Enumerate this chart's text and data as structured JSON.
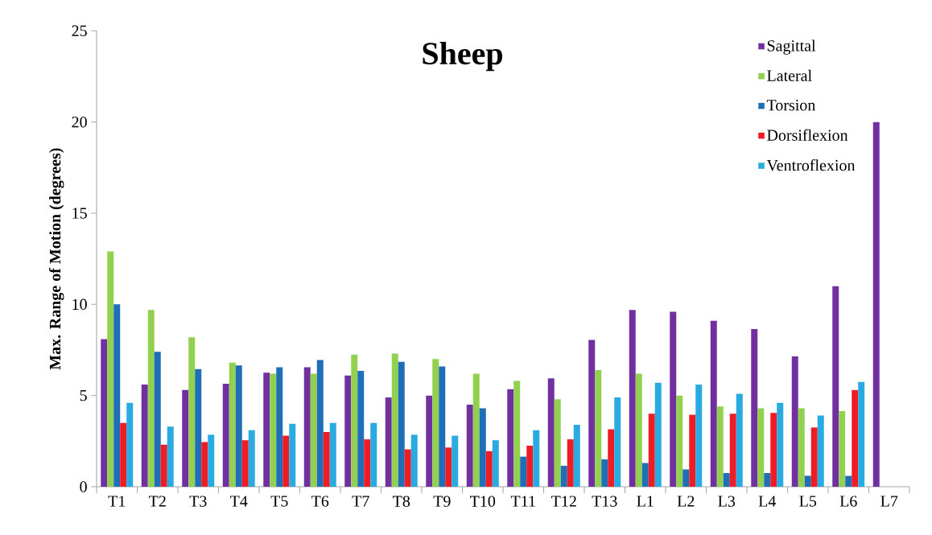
{
  "chart_data": {
    "type": "bar",
    "title": "Sheep",
    "ylabel": "Max. Range of Motion (degrees)",
    "categories": [
      "T1",
      "T2",
      "T3",
      "T4",
      "T5",
      "T6",
      "T7",
      "T8",
      "T9",
      "T10",
      "T11",
      "T12",
      "T13",
      "L1",
      "L2",
      "L3",
      "L4",
      "L5",
      "L6",
      "L7"
    ],
    "series": [
      {
        "name": "Sagittal",
        "color": "#7030a0",
        "values": [
          8.1,
          5.6,
          5.3,
          5.65,
          6.25,
          6.55,
          6.1,
          4.9,
          5.0,
          4.5,
          5.35,
          5.95,
          8.05,
          9.7,
          9.6,
          9.1,
          8.65,
          7.15,
          11.0,
          20.0
        ]
      },
      {
        "name": "Lateral",
        "color": "#92d050",
        "values": [
          12.9,
          9.7,
          8.2,
          6.8,
          6.2,
          6.2,
          7.25,
          7.3,
          7.0,
          6.2,
          5.8,
          4.8,
          6.4,
          6.2,
          5.0,
          4.4,
          4.3,
          4.3,
          4.15,
          null
        ]
      },
      {
        "name": "Torsion",
        "color": "#1f6fb8",
        "values": [
          10.0,
          7.4,
          6.45,
          6.65,
          6.55,
          6.95,
          6.35,
          6.85,
          6.6,
          4.3,
          1.65,
          1.15,
          1.5,
          1.3,
          0.95,
          0.75,
          0.75,
          0.6,
          0.6,
          null
        ]
      },
      {
        "name": "Dorsiflexion",
        "color": "#ee1c25",
        "values": [
          3.5,
          2.3,
          2.45,
          2.55,
          2.8,
          3.0,
          2.6,
          2.05,
          2.15,
          1.95,
          2.25,
          2.6,
          3.15,
          4.0,
          3.95,
          4.0,
          4.05,
          3.25,
          5.3,
          null
        ]
      },
      {
        "name": "Ventroflexion",
        "color": "#29abe2",
        "values": [
          4.6,
          3.3,
          2.85,
          3.1,
          3.45,
          3.5,
          3.5,
          2.85,
          2.8,
          2.55,
          3.1,
          3.4,
          4.9,
          5.7,
          5.6,
          5.1,
          4.6,
          3.9,
          5.75,
          null
        ]
      }
    ],
    "ylim": [
      0,
      25
    ],
    "yticks": [
      0,
      5,
      10,
      15,
      20,
      25
    ],
    "legend": "top right"
  }
}
